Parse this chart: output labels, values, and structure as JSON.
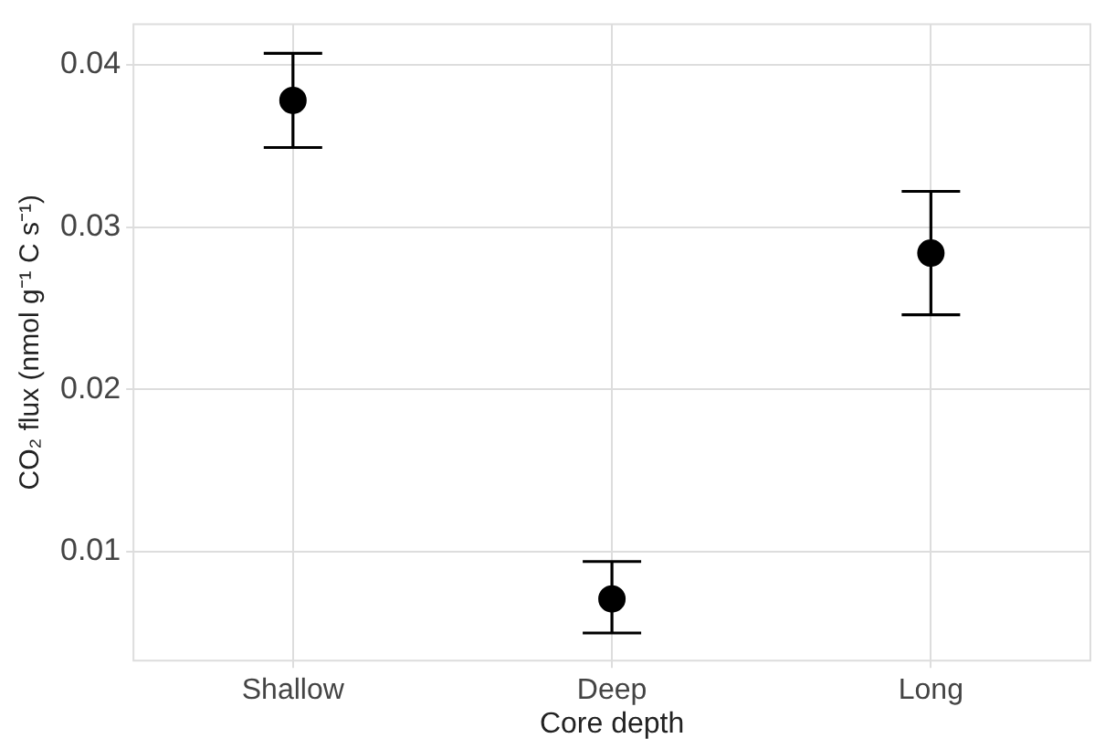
{
  "chart_data": {
    "type": "scatter",
    "xlabel": "Core depth",
    "ylabel": "CO₂ flux (nmol g⁻¹ C s⁻¹)",
    "categories": [
      "Shallow",
      "Deep",
      "Long"
    ],
    "values": [
      0.0378,
      0.0071,
      0.0284
    ],
    "errors": [
      [
        0.0349,
        0.0407
      ],
      [
        0.005,
        0.0094
      ],
      [
        0.0246,
        0.0322
      ]
    ],
    "color": "#000000",
    "marker": "circle",
    "ylim": [
      0.0033,
      0.0425
    ],
    "yticks": [
      0.01,
      0.02,
      0.03,
      0.04
    ],
    "grid": true
  }
}
